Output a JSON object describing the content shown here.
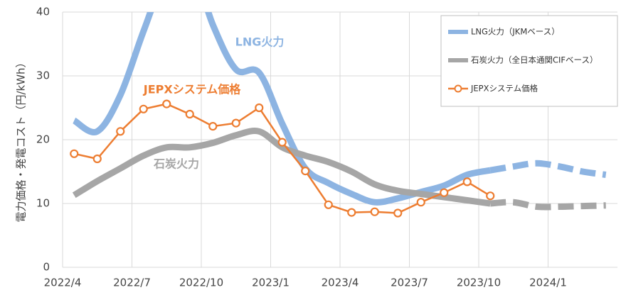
{
  "chart_data": {
    "type": "line",
    "y_label": "電力価格・発電コスト（円/kWh）",
    "categories": [
      "2022/4",
      null,
      null,
      "2022/7",
      null,
      null,
      "2022/10",
      null,
      null,
      "2023/1",
      null,
      null,
      "2023/4",
      null,
      null,
      "2023/7",
      null,
      null,
      "2023/10",
      null,
      null,
      "2024/1",
      null,
      null
    ],
    "series": [
      {
        "name": "LNG火力（JKMベース）",
        "color": "#8db4e2",
        "style": "thick",
        "dashed_from_index": 18,
        "values": [
          23,
          21.3,
          27,
          37,
          46,
          48,
          38,
          31,
          30.5,
          22.5,
          15.5,
          13.2,
          11.5,
          10.2,
          10.8,
          11.8,
          12.8,
          14.5,
          15.2,
          15.8,
          16.3,
          15.8,
          15,
          14.5
        ]
      },
      {
        "name": "石炭火力（全日本通関CIFベース）",
        "color": "#a6a6a6",
        "style": "thick",
        "dashed_from_index": 18,
        "values": [
          11.3,
          13.5,
          15.5,
          17.5,
          18.8,
          18.8,
          19.5,
          20.7,
          21.3,
          18.8,
          17.5,
          16.5,
          15,
          13,
          12,
          11.5,
          11,
          10.5,
          10,
          10.2,
          9.5,
          9.5,
          9.6,
          9.7
        ]
      },
      {
        "name": "JEPXシステム価格",
        "color": "#ed7d31",
        "style": "marker",
        "values": [
          17.8,
          17,
          21.3,
          24.8,
          25.6,
          24,
          22.1,
          22.6,
          25,
          19.6,
          15.1,
          9.8,
          8.6,
          8.7,
          8.5,
          10.2,
          11.7,
          13.4,
          11.2,
          null,
          null,
          null,
          null,
          null
        ]
      }
    ],
    "annotations": [
      {
        "text": "LNG火力",
        "series": 0
      },
      {
        "text": "JEPXシステム価格",
        "series": 2
      },
      {
        "text": "石炭火力",
        "series": 1
      }
    ],
    "ylim": [
      0,
      40
    ],
    "yticks": [
      0,
      10,
      20,
      30,
      40
    ],
    "grid": true,
    "legend": "upper right"
  }
}
